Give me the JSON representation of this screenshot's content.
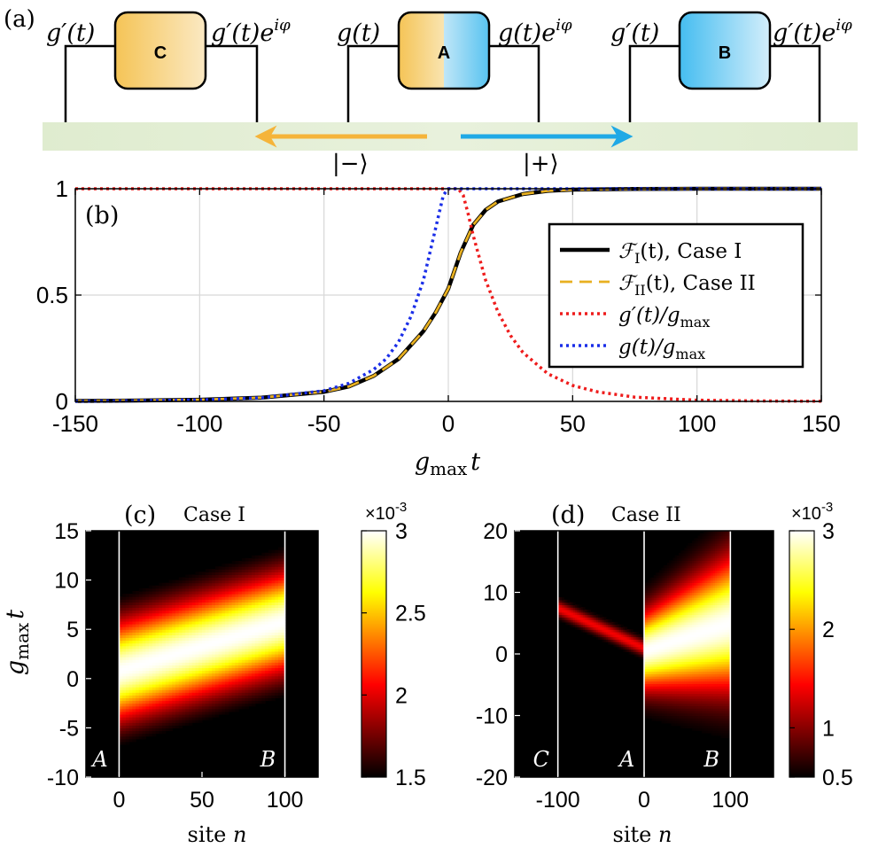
{
  "panel_a": {
    "label": "(a)",
    "boxes": [
      {
        "name": "C",
        "in_label": "g′(t)",
        "out_label": "g′(t)e",
        "out_sup": "iφ"
      },
      {
        "name": "A",
        "in_label": "g(t)",
        "out_label": "g(t)e",
        "out_sup": "iφ"
      },
      {
        "name": "B",
        "in_label": "g′(t)",
        "out_label": "g′(t)e",
        "out_sup": "iφ"
      }
    ],
    "ket_minus": "|−⟩",
    "ket_plus": "|+⟩",
    "colors": {
      "orange": "#f5b43a",
      "blue": "#1fa9e6",
      "waveguide": "#e3eed6",
      "box_orange": "#f7d37c",
      "box_blue": "#7fd0f2"
    }
  },
  "chart_data": [
    {
      "type": "line",
      "panel_label": "(b)",
      "xlabel_main": "g",
      "xlabel_sub": "max",
      "xlabel_tail": "t",
      "xlim": [
        -150,
        150
      ],
      "ylim": [
        0,
        1
      ],
      "xticks": [
        "-150",
        "-100",
        "-50",
        "0",
        "50",
        "100",
        "150"
      ],
      "yticks": [
        "0",
        "0.5",
        "1"
      ],
      "grid": true,
      "legend_position": "right",
      "series": [
        {
          "name": "F_I(t), Case I",
          "legend_main": "ℱ",
          "legend_sub": "I",
          "legend_tail": "(t),  Case I",
          "style": "solid",
          "color": "#000000",
          "x": [
            -150,
            -125,
            -100,
            -75,
            -50,
            -40,
            -30,
            -20,
            -10,
            -5,
            0,
            5,
            10,
            15,
            20,
            30,
            40,
            50,
            75,
            100,
            150
          ],
          "y": [
            0.002,
            0.004,
            0.008,
            0.018,
            0.045,
            0.07,
            0.12,
            0.2,
            0.33,
            0.42,
            0.53,
            0.7,
            0.83,
            0.9,
            0.94,
            0.975,
            0.99,
            0.996,
            0.999,
            1.0,
            1.0
          ]
        },
        {
          "name": "F_II(t), Case II",
          "legend_main": "ℱ",
          "legend_sub": "II",
          "legend_tail": "(t),  Case II",
          "style": "dashed",
          "color": "#e8b020",
          "x": [
            -150,
            -125,
            -100,
            -75,
            -50,
            -40,
            -30,
            -20,
            -10,
            -5,
            0,
            5,
            10,
            15,
            20,
            30,
            40,
            50,
            75,
            100,
            150
          ],
          "y": [
            0.002,
            0.004,
            0.008,
            0.018,
            0.045,
            0.07,
            0.12,
            0.2,
            0.33,
            0.42,
            0.53,
            0.7,
            0.83,
            0.9,
            0.94,
            0.975,
            0.99,
            0.996,
            0.999,
            1.0,
            1.0
          ]
        },
        {
          "name": "g'(t)/g_max",
          "legend_main": "g′(t)/g",
          "legend_sub": "max",
          "legend_tail": "",
          "style": "dotted",
          "color": "#ee1c1c",
          "x": [
            -150,
            -50,
            0,
            4,
            6,
            8,
            10,
            15,
            20,
            25,
            30,
            40,
            50,
            60,
            75,
            100,
            125,
            150
          ],
          "y": [
            1,
            1,
            1,
            1,
            0.97,
            0.88,
            0.78,
            0.57,
            0.42,
            0.31,
            0.23,
            0.13,
            0.075,
            0.045,
            0.02,
            0.006,
            0.002,
            0.001
          ]
        },
        {
          "name": "g(t)/g_max",
          "legend_main": "g(t)/g",
          "legend_sub": "max",
          "legend_tail": "",
          "style": "dotted",
          "color": "#1a2ee8",
          "x": [
            -150,
            -125,
            -100,
            -75,
            -50,
            -40,
            -30,
            -25,
            -20,
            -15,
            -10,
            -5,
            -2,
            0,
            50,
            150
          ],
          "y": [
            0.001,
            0.003,
            0.007,
            0.017,
            0.05,
            0.085,
            0.15,
            0.2,
            0.28,
            0.4,
            0.57,
            0.82,
            0.97,
            1,
            1,
            1
          ]
        }
      ]
    },
    {
      "type": "heatmap",
      "panel_label": "(c)",
      "title": "Case I",
      "xlabel": "site ",
      "xlabel_var": "n",
      "ylabel_main": "g",
      "ylabel_sub": "max",
      "ylabel_tail": "t",
      "xlim": [
        -20,
        120
      ],
      "ylim": [
        -10,
        15
      ],
      "xticks": [
        "0",
        "50",
        "100"
      ],
      "yticks": [
        "-10",
        "-5",
        "0",
        "5",
        "10",
        "15"
      ],
      "colorbar_ticks": [
        "1.5",
        "2",
        "2.5",
        "3"
      ],
      "colorbar_range": [
        1.5,
        3
      ],
      "colorbar_exp_base": "×10",
      "colorbar_exp": "-3",
      "region": {
        "x_start": 0,
        "x_end": 100
      },
      "center_line": {
        "x": [
          0,
          100
        ],
        "t": [
          0.8,
          5.8
        ]
      },
      "width_t": 5.0,
      "peak": 3.0,
      "site_labels": [
        {
          "text": "A",
          "x": 0
        },
        {
          "text": "B",
          "x": 100
        }
      ]
    },
    {
      "type": "heatmap",
      "panel_label": "(d)",
      "title": "Case II",
      "xlabel": "site ",
      "xlabel_var": "n",
      "xlim": [
        -150,
        150
      ],
      "ylim": [
        -20,
        20
      ],
      "xticks": [
        "-100",
        "0",
        "100"
      ],
      "yticks": [
        "-20",
        "-10",
        "0",
        "10",
        "20"
      ],
      "colorbar_ticks": [
        "0.5",
        "1",
        "2",
        "3"
      ],
      "colorbar_range": [
        0.5,
        3
      ],
      "colorbar_exp_base": "×10",
      "colorbar_exp": "-3",
      "regions": [
        {
          "x_start": -100,
          "x_end": 0,
          "t_start": 7.5,
          "t_end": 1.0,
          "width": 1.3,
          "peak": 1.4
        },
        {
          "x_start": 0,
          "x_end": 100,
          "t_start": 0.5,
          "t_end": 5.0,
          "width": 8.0,
          "peak": 3.0
        }
      ],
      "site_labels": [
        {
          "text": "C",
          "x": -100
        },
        {
          "text": "A",
          "x": 0
        },
        {
          "text": "B",
          "x": 100
        }
      ]
    }
  ]
}
